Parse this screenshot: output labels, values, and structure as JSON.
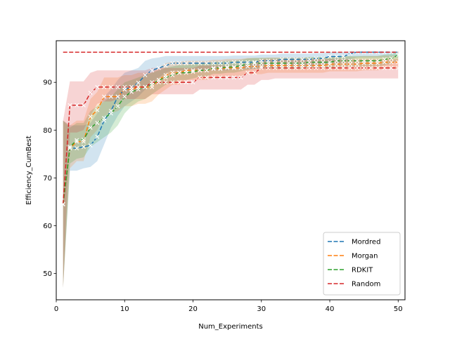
{
  "chart_data": {
    "type": "line",
    "title": "",
    "xlabel": "Num_Experiments",
    "ylabel": "Efficiency_CumBest",
    "xlim": [
      0,
      51
    ],
    "ylim": [
      44.5,
      98.7
    ],
    "x_ticks": [
      0,
      10,
      20,
      30,
      40,
      50
    ],
    "y_ticks": [
      50,
      60,
      70,
      80,
      90
    ],
    "grid": false,
    "legend_position": "lower-right",
    "reference_line": {
      "y": 96.3,
      "color": "#d62728",
      "style": "dashed"
    },
    "series": [
      {
        "name": "Mordred",
        "color": "#1f77b4",
        "x": [
          1,
          2,
          3,
          4,
          5,
          6,
          7,
          8,
          9,
          10,
          11,
          12,
          13,
          14,
          15,
          16,
          17,
          18,
          19,
          20,
          21,
          22,
          23,
          24,
          25,
          26,
          27,
          28,
          29,
          30,
          31,
          32,
          33,
          34,
          35,
          36,
          37,
          38,
          39,
          40,
          41,
          42,
          43,
          44,
          45,
          46,
          47,
          48,
          49,
          50
        ],
        "y": [
          64.5,
          76.2,
          76.2,
          76.5,
          76.8,
          78.6,
          82,
          84,
          87,
          88.5,
          89,
          89.9,
          91.5,
          92.5,
          93,
          93.5,
          94,
          94,
          94,
          94,
          94,
          94,
          94,
          94,
          94,
          94.2,
          94.2,
          94.2,
          94.2,
          94.5,
          94.5,
          94.5,
          94.8,
          94.8,
          94.8,
          94.8,
          94.8,
          95,
          95,
          95.4,
          95.4,
          95.4,
          96,
          96.3,
          96.3,
          96.3,
          96.3,
          96.3,
          96.3,
          96.3
        ],
        "lower": [
          47,
          71.5,
          71.5,
          72,
          72.3,
          73.5,
          77,
          80.5,
          83,
          85,
          86,
          87,
          88.5,
          90,
          91,
          92,
          92.5,
          92.5,
          92.5,
          92.5,
          92.5,
          92.5,
          92.5,
          92.5,
          92.5,
          92.8,
          92.8,
          92.8,
          92.8,
          93,
          93,
          93,
          93.3,
          93.3,
          93.3,
          93.3,
          93.3,
          93.5,
          93.5,
          94,
          94,
          94,
          94.8,
          95.2,
          95.2,
          95.2,
          95.2,
          95.2,
          95.2,
          95.2
        ],
        "upper": [
          82,
          81,
          81,
          81,
          81.5,
          83.5,
          87,
          88.5,
          90.5,
          92,
          92.5,
          93,
          94.5,
          95,
          95.2,
          95.5,
          95.5,
          95.5,
          95.5,
          95.5,
          95.5,
          95.5,
          95.5,
          95.5,
          95.5,
          95.6,
          95.6,
          95.6,
          95.6,
          95.8,
          95.8,
          95.8,
          96,
          96,
          96,
          96,
          96,
          96.1,
          96.1,
          96.3,
          96.3,
          96.3,
          96.5,
          96.5,
          96.5,
          96.5,
          96.5,
          96.5,
          96.5,
          96.5
        ]
      },
      {
        "name": "Morgan",
        "color": "#ff7f0e",
        "x": [
          1,
          2,
          3,
          4,
          5,
          6,
          7,
          8,
          9,
          10,
          11,
          12,
          13,
          14,
          15,
          16,
          17,
          18,
          19,
          20,
          21,
          22,
          23,
          24,
          25,
          26,
          27,
          28,
          29,
          30,
          31,
          32,
          33,
          34,
          35,
          36,
          37,
          38,
          39,
          40,
          41,
          42,
          43,
          44,
          45,
          46,
          47,
          48,
          49,
          50
        ],
        "y": [
          64.5,
          76.2,
          77.6,
          77.6,
          82.8,
          84.2,
          87,
          87,
          87,
          88.5,
          88.5,
          89,
          89,
          89,
          90.5,
          91.5,
          92,
          92,
          92.5,
          92.5,
          92.5,
          92.5,
          92.8,
          92.8,
          93,
          93,
          93,
          93.3,
          93.3,
          93.3,
          93.5,
          93.5,
          93.5,
          93.5,
          93.5,
          93.5,
          93.5,
          93.5,
          93.5,
          93.8,
          93.8,
          93.8,
          93.8,
          93.8,
          94,
          94,
          94,
          94.2,
          94.2,
          94.2
        ],
        "lower": [
          47,
          72,
          73.5,
          73.5,
          78.5,
          80,
          83,
          83.5,
          84,
          85,
          85,
          85.5,
          85.5,
          86,
          87.5,
          88.5,
          89.5,
          89.5,
          90.5,
          90.5,
          90.5,
          90.5,
          91,
          91,
          91.3,
          91.3,
          91.3,
          91.7,
          91.7,
          91.7,
          92,
          92,
          92,
          92,
          92,
          92,
          92,
          92,
          92,
          92.3,
          92.3,
          92.3,
          92.3,
          92.3,
          92.5,
          92.5,
          92.5,
          92.8,
          92.8,
          92.8
        ],
        "upper": [
          82,
          81,
          82,
          82,
          86.5,
          88,
          91,
          91,
          91,
          91.5,
          91.5,
          92,
          92,
          92,
          93,
          94,
          94.3,
          94.3,
          94.5,
          94.5,
          94.5,
          94.5,
          94.7,
          94.7,
          94.9,
          94.9,
          94.9,
          95.1,
          95.1,
          95.1,
          95.2,
          95.2,
          95.2,
          95.2,
          95.2,
          95.2,
          95.2,
          95.2,
          95.2,
          95.4,
          95.4,
          95.4,
          95.4,
          95.4,
          95.5,
          95.5,
          95.5,
          95.6,
          95.6,
          95.6
        ]
      },
      {
        "name": "RDKIT",
        "color": "#2ca02c",
        "x": [
          1,
          2,
          3,
          4,
          5,
          6,
          7,
          8,
          9,
          10,
          11,
          12,
          13,
          14,
          15,
          16,
          17,
          18,
          19,
          20,
          21,
          22,
          23,
          24,
          25,
          26,
          27,
          28,
          29,
          30,
          31,
          32,
          33,
          34,
          35,
          36,
          37,
          38,
          39,
          40,
          41,
          42,
          43,
          44,
          45,
          46,
          47,
          48,
          49,
          50
        ],
        "y": [
          64.5,
          76.5,
          77.9,
          78,
          80.5,
          81.5,
          82.5,
          83.5,
          85,
          87,
          88,
          88.5,
          89,
          89.5,
          90.5,
          91,
          91.5,
          92,
          92,
          92.2,
          92.5,
          92.5,
          93,
          93,
          93.2,
          93.2,
          93.5,
          93.8,
          94,
          94,
          94,
          94,
          94,
          94,
          94,
          94,
          94.2,
          94.2,
          94.2,
          94.2,
          94.5,
          94.5,
          94.5,
          94.5,
          94.5,
          94.5,
          94.5,
          94.8,
          95,
          95.7
        ],
        "lower": [
          47,
          73,
          74,
          74.3,
          76.5,
          77.5,
          78.5,
          79.5,
          81,
          83.5,
          85,
          86,
          86.5,
          87.5,
          88.5,
          89.5,
          90,
          90.5,
          90.5,
          90.8,
          91.2,
          91.2,
          91.8,
          91.8,
          92,
          92,
          92.3,
          92.6,
          92.8,
          92.8,
          92.8,
          92.8,
          92.8,
          92.8,
          92.8,
          92.8,
          93,
          93,
          93,
          93,
          93.3,
          93.3,
          93.3,
          93.3,
          93.3,
          93.3,
          93.3,
          93.6,
          93.8,
          94.6
        ],
        "upper": [
          82,
          80.5,
          81.5,
          81.5,
          84,
          85,
          86,
          87,
          88.5,
          90,
          90.5,
          91,
          91.5,
          92,
          92.5,
          93,
          93.3,
          93.6,
          93.6,
          93.8,
          94,
          94,
          94.3,
          94.3,
          94.5,
          94.5,
          94.7,
          95,
          95.1,
          95.1,
          95.1,
          95.1,
          95.1,
          95.1,
          95.1,
          95.1,
          95.3,
          95.3,
          95.3,
          95.3,
          95.5,
          95.5,
          95.5,
          95.5,
          95.5,
          95.5,
          95.5,
          95.8,
          96,
          96.5
        ]
      },
      {
        "name": "Random",
        "color": "#d62728",
        "x": [
          1,
          2,
          3,
          4,
          5,
          6,
          7,
          8,
          9,
          10,
          11,
          12,
          13,
          14,
          15,
          16,
          17,
          18,
          19,
          20,
          21,
          22,
          23,
          24,
          25,
          26,
          27,
          28,
          29,
          30,
          31,
          32,
          33,
          34,
          35,
          36,
          37,
          38,
          39,
          40,
          41,
          42,
          43,
          44,
          45,
          46,
          47,
          48,
          49,
          50
        ],
        "y": [
          64.5,
          85.2,
          85.2,
          85.2,
          87.8,
          89,
          89,
          89,
          89,
          89,
          89,
          89,
          89,
          90,
          90,
          90,
          90,
          90,
          90,
          90,
          91,
          91,
          91,
          91,
          91,
          91,
          91,
          92,
          92,
          93,
          93,
          93,
          93,
          93,
          93,
          93,
          93,
          93,
          93,
          93,
          93,
          93,
          93,
          93,
          93,
          93,
          93,
          93,
          93,
          93
        ],
        "lower": [
          47,
          79.5,
          79.5,
          80,
          83,
          85.5,
          86,
          86,
          86.5,
          86.5,
          86.5,
          86.5,
          86.5,
          87.5,
          87.5,
          87.5,
          87.5,
          87.5,
          87.5,
          87.5,
          88.5,
          88.5,
          88.5,
          88.5,
          88.5,
          88.5,
          88.5,
          89.5,
          89.5,
          90.5,
          90.5,
          90.8,
          90.8,
          90.8,
          90.8,
          90.8,
          90.8,
          90.8,
          90.8,
          90.8,
          90.8,
          90.8,
          90.8,
          90.8,
          90.8,
          90.8,
          90.8,
          90.8,
          90.8,
          90.8
        ],
        "upper": [
          82,
          90.2,
          90.2,
          90.2,
          92,
          92.5,
          92.5,
          92.5,
          92.5,
          92.5,
          92.5,
          92.5,
          92.5,
          93,
          93,
          93,
          93,
          93,
          93,
          93,
          93.5,
          93.5,
          93.5,
          93.5,
          93.5,
          93.5,
          93.5,
          94,
          94,
          94.8,
          94.8,
          94.8,
          94.8,
          94.8,
          94.8,
          94.8,
          94.8,
          94.8,
          94.8,
          94.8,
          94.8,
          94.8,
          94.8,
          94.8,
          94.8,
          94.8,
          94.8,
          94.8,
          94.8,
          94.8
        ]
      }
    ]
  }
}
